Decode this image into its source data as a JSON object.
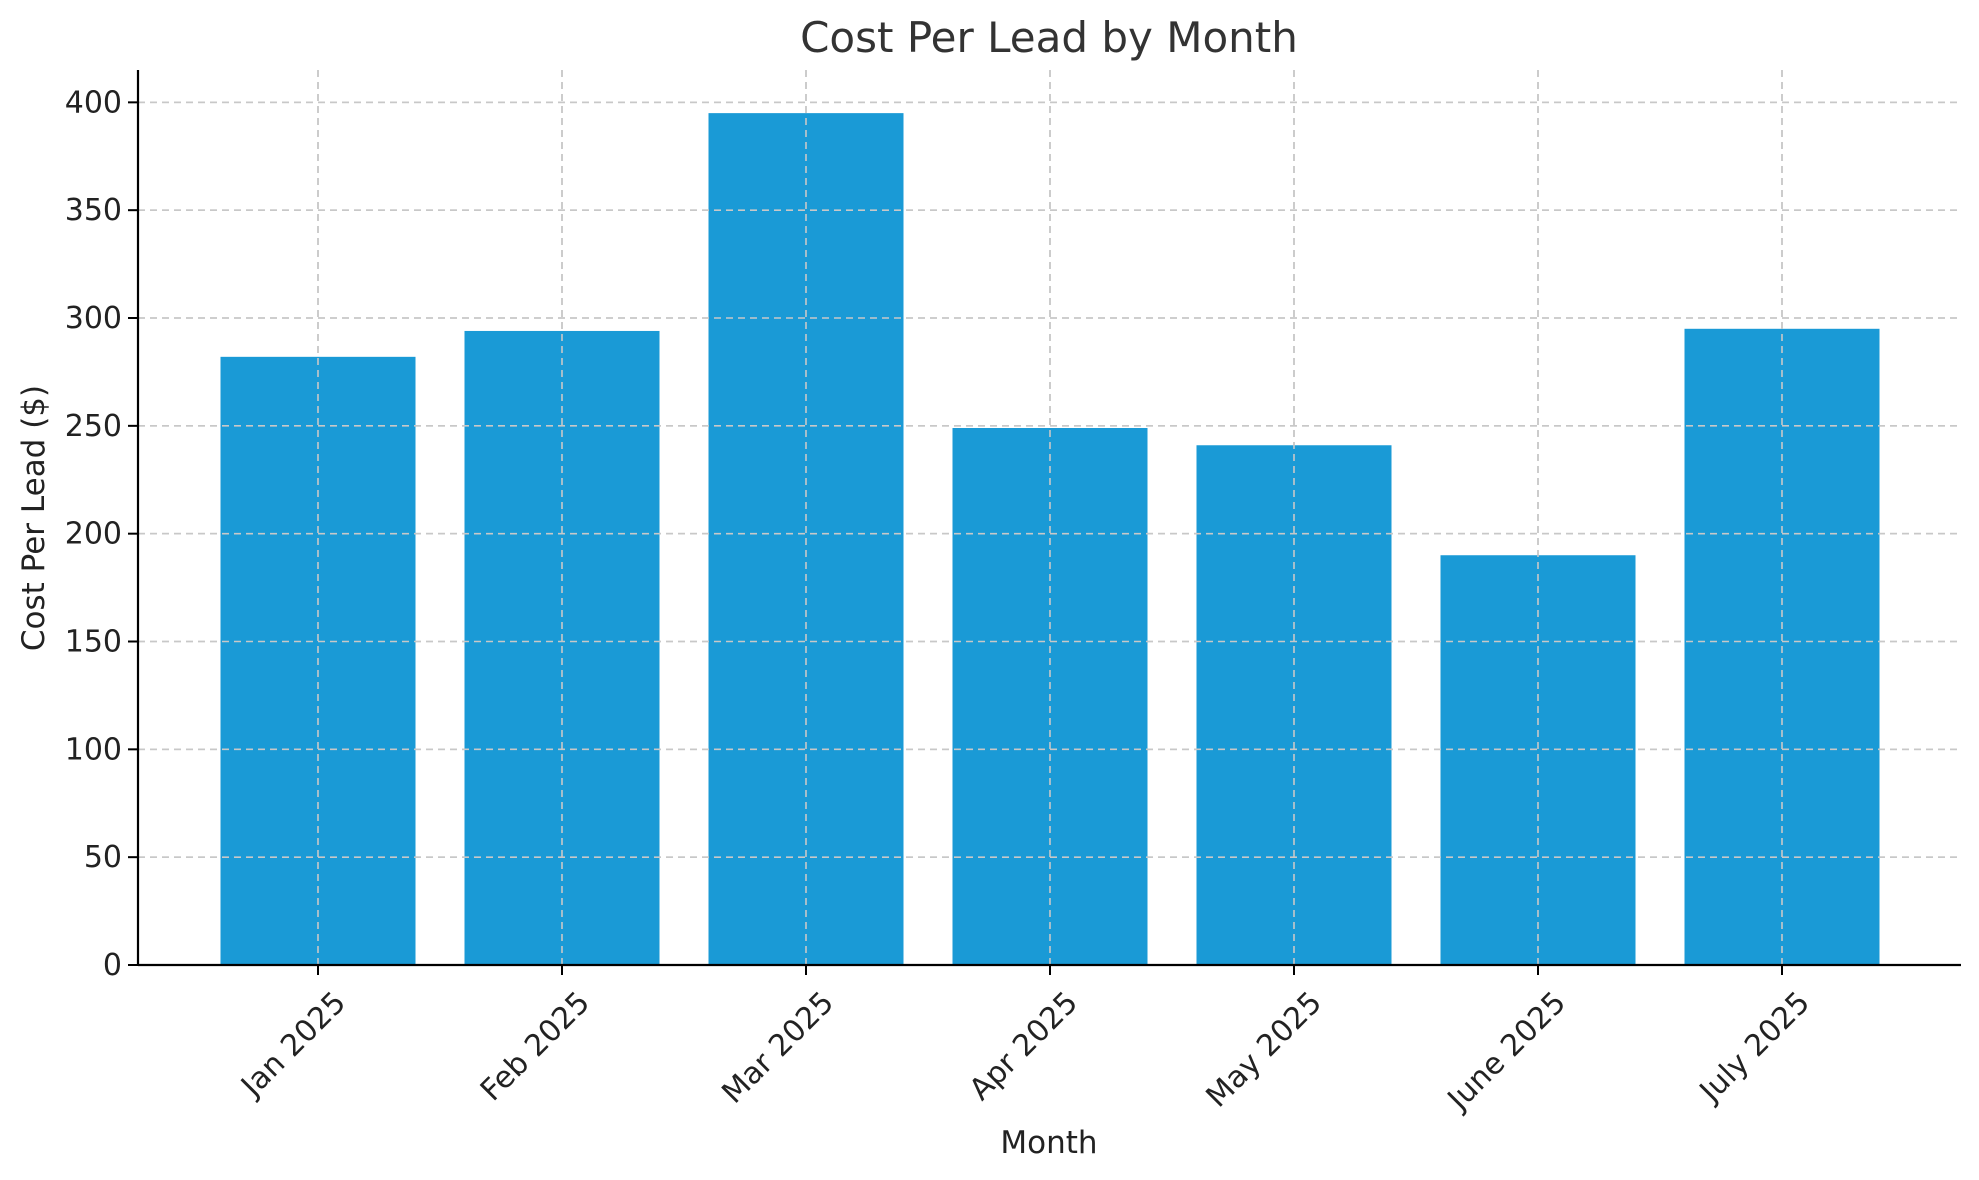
{
  "chart_data": {
    "type": "bar",
    "title": "Cost Per Lead by Month",
    "xlabel": "Month",
    "ylabel": "Cost Per Lead ($)",
    "categories": [
      "Jan 2025",
      "Feb 2025",
      "Mar 2025",
      "Apr 2025",
      "May 2025",
      "June 2025",
      "July 2025"
    ],
    "values": [
      282,
      294,
      395,
      249,
      241,
      190,
      295
    ],
    "ylim": [
      0,
      415
    ],
    "yticks": [
      0,
      50,
      100,
      150,
      200,
      250,
      300,
      350,
      400
    ],
    "grid": true,
    "bar_color": "#1a9ad6",
    "xtick_rotation": "45°"
  }
}
